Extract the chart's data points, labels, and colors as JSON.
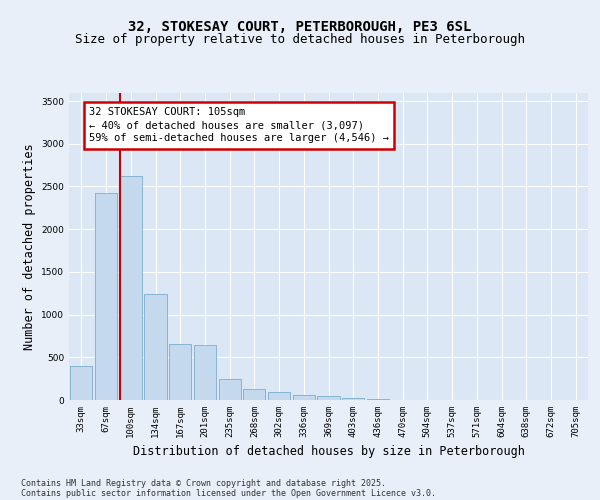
{
  "title": "32, STOKESAY COURT, PETERBOROUGH, PE3 6SL",
  "subtitle": "Size of property relative to detached houses in Peterborough",
  "xlabel": "Distribution of detached houses by size in Peterborough",
  "ylabel": "Number of detached properties",
  "categories": [
    "33sqm",
    "67sqm",
    "100sqm",
    "134sqm",
    "167sqm",
    "201sqm",
    "235sqm",
    "268sqm",
    "302sqm",
    "336sqm",
    "369sqm",
    "403sqm",
    "436sqm",
    "470sqm",
    "504sqm",
    "537sqm",
    "571sqm",
    "604sqm",
    "638sqm",
    "672sqm",
    "705sqm"
  ],
  "values": [
    400,
    2420,
    2620,
    1240,
    650,
    645,
    250,
    130,
    95,
    58,
    48,
    18,
    9,
    4,
    2,
    1,
    1,
    0,
    0,
    0,
    0
  ],
  "bar_color": "#c5d9ee",
  "bar_edge_color": "#7aadcf",
  "highlight_line_color": "#cc0000",
  "annotation_text": "32 STOKESAY COURT: 105sqm\n← 40% of detached houses are smaller (3,097)\n59% of semi-detached houses are larger (4,546) →",
  "annotation_box_color": "#cc0000",
  "ylim": [
    0,
    3600
  ],
  "yticks": [
    0,
    500,
    1000,
    1500,
    2000,
    2500,
    3000,
    3500
  ],
  "background_color": "#e8eff8",
  "plot_bg_color": "#dce7f5",
  "footer_line1": "Contains HM Land Registry data © Crown copyright and database right 2025.",
  "footer_line2": "Contains public sector information licensed under the Open Government Licence v3.0.",
  "title_fontsize": 10,
  "subtitle_fontsize": 9,
  "tick_fontsize": 6.5,
  "label_fontsize": 8.5,
  "annotation_fontsize": 7.5,
  "footer_fontsize": 6
}
